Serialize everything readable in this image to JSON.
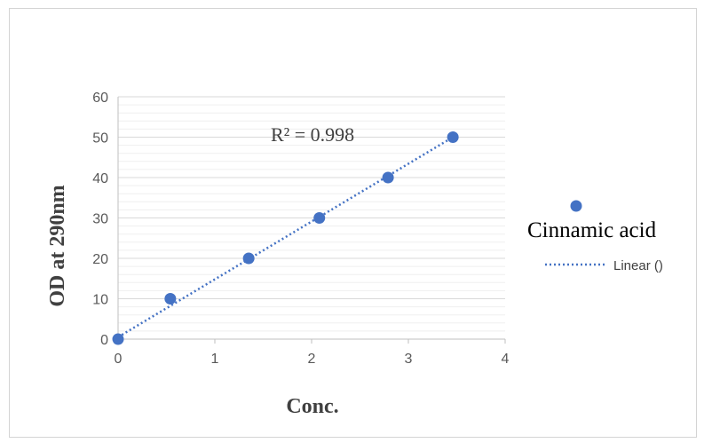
{
  "chart_data": {
    "type": "scatter",
    "title": "",
    "xlabel": "Conc.",
    "ylabel": "OD at 290nm",
    "xlim": [
      0,
      4
    ],
    "ylim": [
      0,
      60
    ],
    "x_ticks": [
      "0",
      "1",
      "2",
      "3",
      "4"
    ],
    "y_ticks": [
      "0",
      "10",
      "20",
      "30",
      "40",
      "50",
      "60"
    ],
    "grid": "horizontal major and minor lines",
    "legend_position": "right",
    "series": [
      {
        "name": "Cinnamic acid",
        "color": "#4472C4",
        "marker": "circle",
        "x": [
          0,
          0.54,
          1.35,
          2.08,
          2.79,
          3.46
        ],
        "y": [
          0,
          10,
          20,
          30,
          40,
          50
        ]
      }
    ],
    "trendline": {
      "name": "Linear ()",
      "style": "dotted",
      "color": "#4472C4",
      "x": [
        0,
        3.46
      ],
      "y": [
        0.5,
        50
      ]
    },
    "annotations": [
      {
        "text": "R² = 0.998"
      }
    ]
  }
}
